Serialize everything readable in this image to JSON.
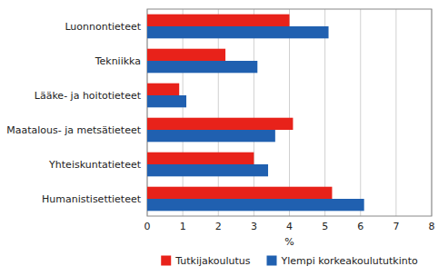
{
  "chart_data": {
    "type": "bar",
    "orientation": "horizontal",
    "categories": [
      "Luonnontieteet",
      "Tekniikka",
      "Lääke- ja hoitotieteet",
      "Maatalous- ja metsätieteet",
      "Yhteiskuntatieteet",
      "Humanistisettieteet"
    ],
    "series": [
      {
        "name": "Tutkijakoulutus",
        "color": "#e8221a",
        "values": [
          4.0,
          2.2,
          0.9,
          4.1,
          3.0,
          5.2
        ]
      },
      {
        "name": "Ylempi korkeakoulututkinto",
        "color": "#2060b0",
        "values": [
          5.1,
          3.1,
          1.1,
          3.6,
          3.4,
          6.1
        ]
      }
    ],
    "xlabel": "%",
    "xlim": [
      0,
      8
    ],
    "xticks": [
      0,
      1,
      2,
      3,
      4,
      5,
      6,
      7,
      8
    ],
    "grid": true,
    "legend": "bottom"
  }
}
